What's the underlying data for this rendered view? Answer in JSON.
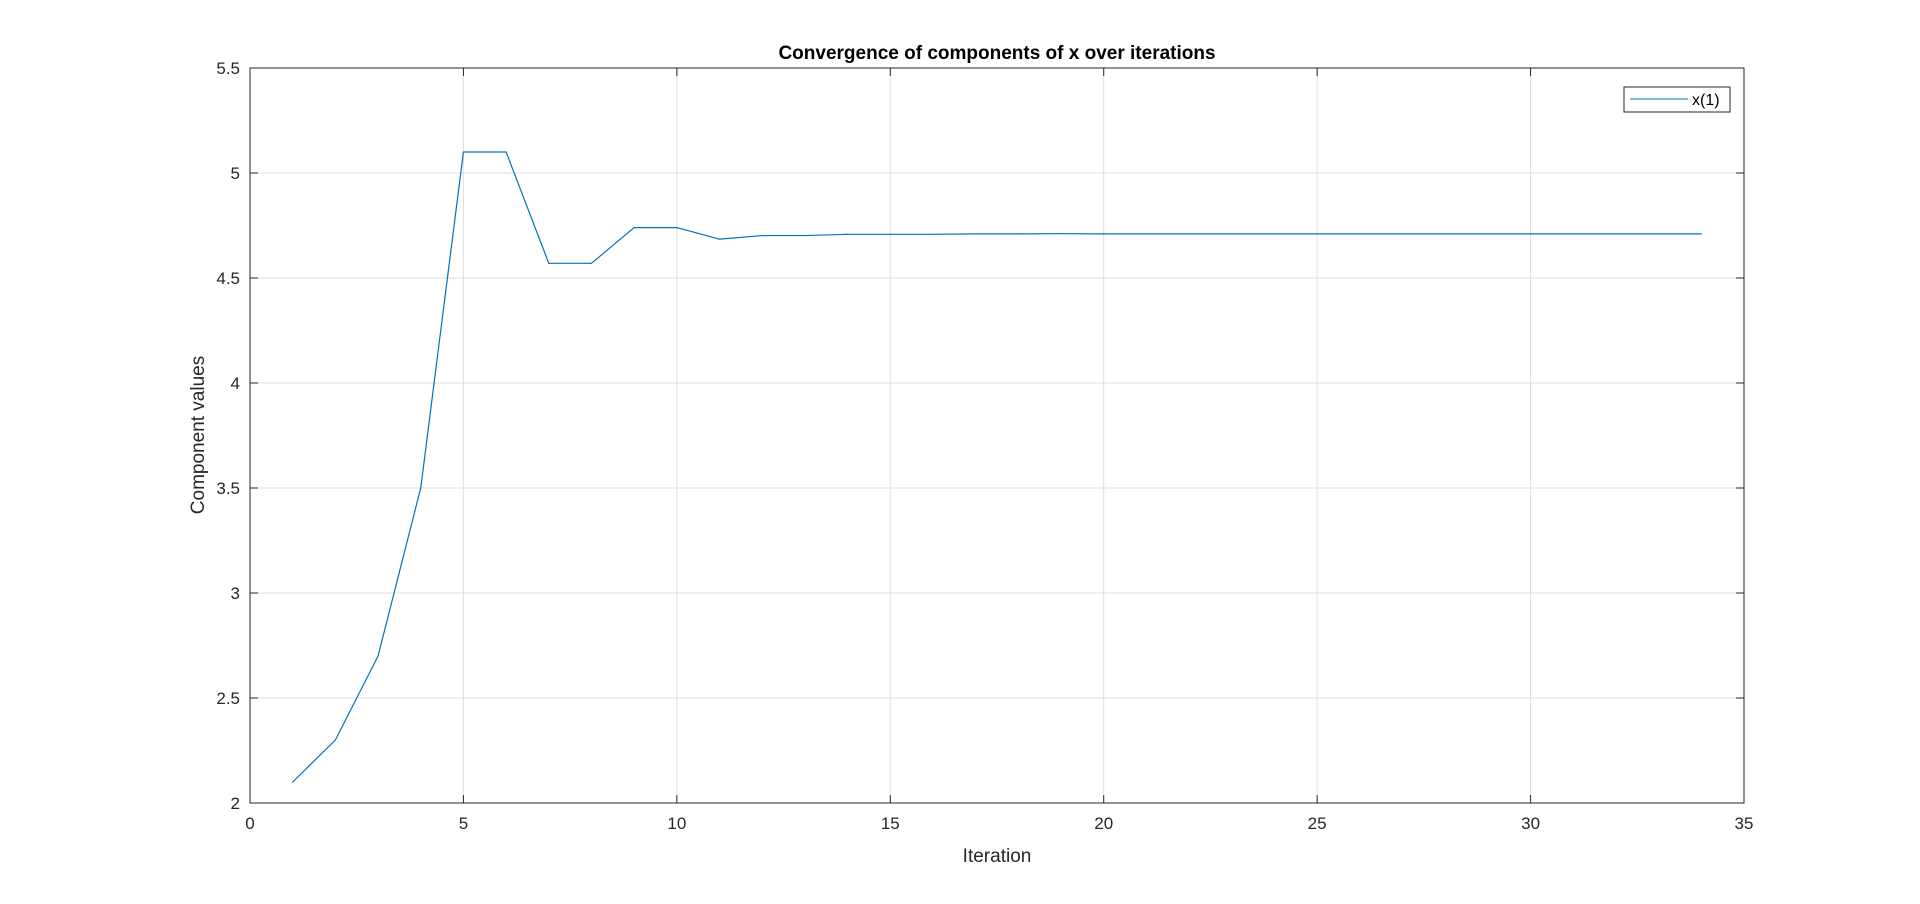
{
  "chart_data": {
    "type": "line",
    "title": "Convergence of components of x over iterations",
    "xlabel": "Iteration",
    "ylabel": "Component values",
    "xlim": [
      0,
      35
    ],
    "ylim": [
      2,
      5.5
    ],
    "xticks": [
      0,
      5,
      10,
      15,
      20,
      25,
      30,
      35
    ],
    "yticks": [
      2,
      2.5,
      3,
      3.5,
      4,
      4.5,
      5,
      5.5
    ],
    "xtick_labels": [
      "0",
      "5",
      "10",
      "15",
      "20",
      "25",
      "30",
      "35"
    ],
    "ytick_labels": [
      "2",
      "2.5",
      "3",
      "3.5",
      "4",
      "4.5",
      "5",
      "5.5"
    ],
    "grid": true,
    "legend_position": "top-right",
    "series": [
      {
        "name": "x(1)",
        "color": "#0072bd",
        "x": [
          1,
          2,
          3,
          4,
          5,
          6,
          7,
          8,
          9,
          10,
          11,
          12,
          13,
          14,
          15,
          16,
          17,
          18,
          19,
          20,
          21,
          22,
          23,
          24,
          25,
          26,
          27,
          28,
          29,
          30,
          31,
          32,
          33,
          34
        ],
        "values": [
          2.1,
          2.3,
          2.7,
          3.5,
          5.1,
          5.1,
          4.57,
          4.57,
          4.74,
          4.74,
          4.685,
          4.702,
          4.702,
          4.708,
          4.708,
          4.708,
          4.71,
          4.71,
          4.711,
          4.71,
          4.71,
          4.71,
          4.71,
          4.71,
          4.71,
          4.71,
          4.71,
          4.71,
          4.71,
          4.71,
          4.71,
          4.71,
          4.71,
          4.71
        ]
      }
    ]
  }
}
